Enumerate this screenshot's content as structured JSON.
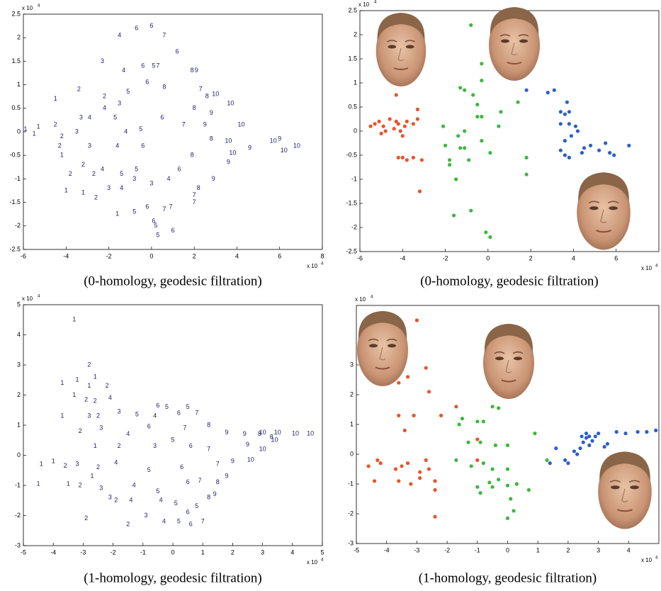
{
  "chart_data": [
    {
      "type": "scatter",
      "caption": "(0-homology, geodesic filtration)",
      "xlim": [
        -6,
        8
      ],
      "ylim": [
        -2.5,
        2.5
      ],
      "xticks": [
        -6,
        -4,
        -2,
        0,
        2,
        4,
        6,
        8
      ],
      "yticks": [
        -2.5,
        -2,
        -1.5,
        -1,
        -0.5,
        0,
        0.5,
        1,
        1.5,
        2,
        2.5
      ],
      "x_scale_label": "x 10",
      "x_scale_exponent": "4",
      "y_scale_label": "x 10",
      "y_scale_exponent": "4",
      "series": [
        {
          "color": "#22226a",
          "point_labels": [
            "6",
            "4",
            "6",
            "7",
            "6",
            "3",
            "4",
            "6",
            "5",
            "7",
            "8",
            "9",
            "2",
            "5",
            "6",
            "8",
            "7",
            "8",
            "10",
            "2",
            "3",
            "1",
            "4",
            "10",
            "8",
            "9",
            "10",
            "1",
            "1",
            "2",
            "3",
            "4",
            "5",
            "6",
            "7",
            "9",
            "1",
            "2",
            "3",
            "4",
            "5",
            "8",
            "10",
            "10",
            "10",
            "10",
            "9",
            "9",
            "2",
            "3",
            "4",
            "6",
            "8",
            "9",
            "10",
            "1",
            "2",
            "4",
            "5",
            "3",
            "6",
            "9",
            "2",
            "2",
            "3",
            "4",
            "5",
            "4",
            "8",
            "3",
            "1",
            "2",
            "1",
            "7",
            "7",
            "1",
            "5",
            "6",
            "7",
            "7",
            "6",
            "5",
            "6",
            "5"
          ],
          "x": [
            0,
            -1.5,
            -0.7,
            0.6,
            1.2,
            -2.3,
            -1.3,
            -0.4,
            0.1,
            0.3,
            1.9,
            2.1,
            -3.4,
            -1.1,
            -0.2,
            0.6,
            2.3,
            2.6,
            3,
            -2.2,
            -1.5,
            -4.5,
            -2.2,
            3.7,
            2,
            2.8,
            4.2,
            -5.9,
            -5.3,
            -4.5,
            -3.3,
            -2.9,
            -1.7,
            0.5,
            1.5,
            2.5,
            -5.5,
            -4.2,
            -3.5,
            -1.2,
            -0.5,
            2.8,
            3.6,
            5.7,
            6.8,
            6.2,
            6,
            4.6,
            -4.3,
            -2.9,
            -1.6,
            -0.4,
            1.9,
            3.6,
            3.8,
            -4.2,
            -3.2,
            -2.3,
            -0.7,
            -0.8,
            1.3,
            2.9,
            -3.8,
            -2.7,
            -2,
            -1.4,
            -1.4,
            0.8,
            2.2,
            0,
            -3.2,
            -2.6,
            -4,
            2,
            2,
            -1.6,
            -0.8,
            -0.2,
            0.6,
            0.9,
            0.1,
            0.2,
            1,
            0.3
          ],
          "values": [
            2.25,
            2.05,
            2.2,
            2.05,
            1.7,
            1.5,
            1.3,
            1.4,
            1.4,
            1.4,
            1.3,
            1.3,
            0.9,
            0.85,
            1.05,
            0.95,
            0.9,
            0.75,
            0.8,
            0.75,
            0.6,
            0.7,
            0.5,
            0.6,
            0.5,
            0.4,
            0.15,
            0.05,
            0.1,
            0.15,
            0.3,
            0.3,
            0.3,
            0.3,
            0.15,
            0.15,
            -0.05,
            -0.1,
            0,
            0,
            0.05,
            -0.15,
            -0.2,
            -0.2,
            -0.3,
            -0.4,
            -0.15,
            -0.35,
            -0.3,
            -0.3,
            -0.3,
            -0.3,
            -0.5,
            -0.65,
            -0.45,
            -0.5,
            -0.7,
            -0.8,
            -0.8,
            -1,
            -0.8,
            -1,
            -0.9,
            -0.9,
            -1.2,
            -1.2,
            -0.9,
            -1,
            -1.2,
            -1.1,
            -1.3,
            -1.4,
            -1.25,
            -1.35,
            -1.5,
            -1.75,
            -1.7,
            -1.6,
            -1.65,
            -1.6,
            -1.9,
            -2,
            -2.1,
            -2.2
          ]
        }
      ]
    },
    {
      "type": "scatter",
      "caption": "(0-homology, geodesic filtration)",
      "xlim": [
        -6,
        8
      ],
      "ylim": [
        -2.5,
        2.5
      ],
      "xticks": [
        -6,
        -4,
        -2,
        0,
        2,
        4,
        6
      ],
      "yticks": [
        -2.5,
        -2,
        -1.5,
        -1,
        -0.5,
        0,
        0.5,
        1,
        1.5,
        2,
        2.5
      ],
      "x_scale_label": "x 10",
      "x_scale_exponent": "4",
      "y_scale_label": "x 10",
      "y_scale_exponent": "4",
      "series": [
        {
          "color": "#e8542c",
          "x": [
            -5.5,
            -5.3,
            -5.1,
            -4.9,
            -4.6,
            -4.4,
            -4.2,
            -4.1,
            -4,
            -3.9,
            -3.8,
            -3.5,
            -3.3,
            -4.8,
            -5,
            -4.3,
            -3.3,
            -4.2,
            -4,
            -3.8,
            -3.5,
            -3.1,
            -3.2,
            -4.3
          ],
          "values": [
            0.1,
            0.15,
            0.2,
            0.1,
            0.25,
            0.05,
            0.15,
            0,
            -0.1,
            0.1,
            0.2,
            0.15,
            0.25,
            0,
            -0.05,
            0.75,
            0.45,
            -0.55,
            -0.55,
            -0.6,
            -0.55,
            -0.6,
            -1.25,
            0.2
          ]
        },
        {
          "color": "#3db83d",
          "x": [
            -0.8,
            -0.3,
            -1.3,
            -1.1,
            -0.3,
            -0.7,
            -0.5,
            -0.3,
            -0.5,
            0.6,
            1.4,
            -2.1,
            -1.4,
            -1.1,
            -0.3,
            0.1,
            -1.3,
            -0.9,
            -2,
            -1.8,
            -1.8,
            -1.5,
            1.8,
            1.8,
            -1.6,
            -0.8,
            -0.1,
            0.1,
            -1.1,
            0.5
          ],
          "values": [
            2.2,
            1.4,
            0.9,
            0.85,
            1.05,
            0.75,
            0.55,
            0.3,
            0.3,
            0.4,
            0.6,
            0.1,
            -0.1,
            -0.35,
            -0.2,
            -0.45,
            -0.35,
            -0.6,
            -0.3,
            -0.6,
            -0.7,
            -1,
            -0.55,
            -0.9,
            -1.75,
            -1.65,
            -2.1,
            -2.2,
            0,
            0.1
          ]
        },
        {
          "color": "#2e5fc9",
          "x": [
            1.8,
            2.8,
            3.1,
            3.7,
            3.4,
            3.6,
            3.8,
            3.4,
            3.8,
            4.1,
            4.2,
            3.9,
            3.6,
            4.5,
            4.8,
            5.2,
            5.5,
            5.7,
            5.9,
            6.6,
            3.4,
            3.6,
            3.8,
            4.4
          ],
          "values": [
            0.85,
            0.8,
            0.85,
            0.6,
            0.4,
            0.35,
            0.4,
            0.15,
            0.15,
            0.1,
            0,
            -0.1,
            -0.2,
            -0.35,
            -0.3,
            -0.4,
            -0.25,
            -0.45,
            -0.5,
            -0.3,
            -0.4,
            -0.5,
            -0.55,
            -0.45
          ]
        }
      ]
    },
    {
      "type": "scatter",
      "caption": "(1-homology, geodesic filtration)",
      "xlim": [
        -5,
        5
      ],
      "ylim": [
        -3,
        5
      ],
      "xticks": [
        -5,
        -4,
        -3,
        -2,
        -1,
        0,
        1,
        2,
        3,
        4,
        5
      ],
      "yticks": [
        -3,
        -2,
        -1,
        0,
        1,
        2,
        3,
        4,
        5
      ],
      "x_scale_label": "x 10",
      "x_scale_exponent": "4",
      "y_scale_label": "x 10",
      "y_scale_exponent": "4",
      "series": [
        {
          "color": "#22226a",
          "point_labels": [
            "1",
            "2",
            "1",
            "1",
            "1",
            "1",
            "2",
            "1",
            "2",
            "2",
            "4",
            "1",
            "3",
            "2",
            "3",
            "5",
            "4",
            "6",
            "5",
            "5",
            "6",
            "7",
            "2",
            "3",
            "4",
            "6",
            "7",
            "8",
            "9",
            "9",
            "10",
            "10",
            "10",
            "10",
            "8",
            "8",
            "1",
            "2",
            "3",
            "5",
            "6",
            "7",
            "9",
            "10",
            "10",
            "1",
            "1",
            "2",
            "3",
            "2",
            "4",
            "5",
            "6",
            "7",
            "9",
            "10",
            "1",
            "1",
            "2",
            "1",
            "3",
            "4",
            "5",
            "6",
            "7",
            "8",
            "9",
            "3",
            "2",
            "4",
            "4",
            "5",
            "8",
            "9",
            "2",
            "2",
            "3",
            "4",
            "5",
            "6",
            "5",
            "6",
            "7"
          ],
          "x": [
            -3.3,
            -2.8,
            -2.6,
            -2.8,
            -3.7,
            -3.2,
            -2.2,
            -3.3,
            -2.9,
            -2.6,
            -2.1,
            -3.7,
            -2.8,
            -2.5,
            -1.8,
            -1.2,
            -0.6,
            -0.5,
            -0.2,
            0.5,
            0.2,
            0.8,
            -3.1,
            -2.4,
            -1.5,
            -0.8,
            0.4,
            1.2,
            1.8,
            2.4,
            3,
            3.5,
            4.1,
            4.6,
            2.9,
            3.3,
            -2.6,
            -1.8,
            -0.6,
            0,
            0.6,
            1.2,
            2.5,
            3,
            3.4,
            -4.4,
            -4,
            -3.6,
            -3.2,
            -2.5,
            -1.9,
            -0.8,
            0.3,
            1.5,
            2,
            2.6,
            -4.5,
            -3.5,
            -3.1,
            -2.7,
            -2.4,
            -1.3,
            -0.5,
            0.5,
            0.9,
            1.5,
            1.8,
            -2.1,
            -1.9,
            -1.4,
            -0.4,
            0.1,
            1.2,
            1.4,
            -2.9,
            -1.5,
            -0.9,
            -0.3,
            0.2,
            0.5,
            0.8,
            0.6,
            1
          ],
          "values": [
            4.5,
            3,
            2.6,
            2.3,
            2.4,
            2.5,
            2.3,
            2,
            1.85,
            1.8,
            1.9,
            1.3,
            1.3,
            1.3,
            1.45,
            1.35,
            1.3,
            1.65,
            1.6,
            1.6,
            1.4,
            1.4,
            0.8,
            0.9,
            0.7,
            0.95,
            0.9,
            1,
            0.75,
            0.7,
            0.75,
            0.75,
            0.72,
            0.72,
            0.7,
            0.6,
            0.3,
            0.3,
            0.3,
            0.5,
            0.3,
            0.2,
            0.35,
            0.2,
            0.5,
            -0.3,
            -0.2,
            -0.35,
            -0.3,
            -0.4,
            -0.25,
            -0.5,
            -0.4,
            -0.3,
            -0.2,
            -0.15,
            -0.95,
            -0.95,
            -1,
            -0.7,
            -1.1,
            -1,
            -1.2,
            -0.9,
            -0.85,
            -0.9,
            -0.7,
            -1.4,
            -1.5,
            -1.5,
            -1.5,
            -1.6,
            -1.4,
            -1.3,
            -2.1,
            -2.3,
            -2,
            -2.2,
            -2.2,
            -1.9,
            -1.7,
            -2.3,
            -2.2
          ]
        }
      ]
    },
    {
      "type": "scatter",
      "caption": "(1-homology, geodesic filtration)",
      "xlim": [
        -5,
        5
      ],
      "ylim": [
        -3,
        5
      ],
      "xticks": [
        -5,
        -4,
        -3,
        -2,
        -1,
        0,
        1,
        2,
        3,
        4
      ],
      "yticks": [
        -3,
        -2,
        -1,
        0,
        1,
        2,
        3
      ],
      "x_scale_label": "x 10",
      "x_scale_exponent": "4",
      "y_scale_label": "x 10",
      "y_scale_exponent": "4",
      "series": [
        {
          "color": "#e8542c",
          "x": [
            -4.6,
            -4.3,
            -4.2,
            -4.4,
            -3.7,
            -3.5,
            -3.3,
            -3.6,
            -3.2,
            -2.9,
            -2.9,
            -2.6,
            -2.4,
            -2.7,
            -3.4,
            -3.6,
            -3.1,
            -3.6,
            -3.3,
            -2.6,
            -3,
            -2.7,
            -2.2,
            -1.7,
            -1,
            -2.4,
            -2.4,
            -1
          ],
          "values": [
            -0.4,
            -0.2,
            -0.3,
            -0.9,
            -0.5,
            -0.4,
            -0.3,
            -0.9,
            -1,
            -0.6,
            -0.8,
            -0.5,
            -0.9,
            -0.2,
            0.8,
            1.3,
            1.3,
            2.4,
            2.6,
            2.1,
            4.5,
            2.9,
            1.3,
            1.6,
            0.5,
            -1.2,
            -2.1,
            -0.2
          ]
        },
        {
          "color": "#3db83d",
          "x": [
            -1.5,
            -1,
            -0.8,
            -0.5,
            -0.3,
            -1.6,
            0.9,
            -0.9,
            -0.4,
            0,
            -1.3,
            -1.7,
            -1.2,
            -0.8,
            -0.5,
            -0.3,
            -0.5,
            -0.9,
            -0.6,
            0,
            0.3,
            0,
            0.7,
            1.3,
            0.2,
            0,
            -1,
            0.1
          ],
          "values": [
            1.2,
            1.1,
            1.1,
            1.6,
            1.55,
            1,
            0.7,
            0.4,
            0.3,
            0.3,
            0.4,
            -0.2,
            -0.4,
            -0.3,
            -0.5,
            -0.85,
            -1.1,
            -1.3,
            -0.95,
            -0.5,
            -1,
            -1.05,
            -1.2,
            -0.2,
            -1.9,
            -2.15,
            -1.1,
            -1.5
          ]
        },
        {
          "color": "#2e5fc9",
          "x": [
            1.4,
            1.6,
            1.9,
            2,
            2.3,
            2.4,
            2.5,
            2.6,
            2.6,
            2.7,
            2.8,
            2.9,
            3,
            3.2,
            3.3,
            3.6,
            3.9,
            4.3,
            4.6,
            4.9,
            2.2,
            2.45,
            2.7
          ],
          "values": [
            -0.3,
            0.2,
            -0.2,
            -0.3,
            0,
            0.2,
            0.4,
            0.55,
            0.7,
            0.6,
            0.45,
            0.6,
            0.7,
            0.25,
            0.35,
            0.75,
            0.7,
            0.75,
            0.75,
            0.8,
            0.1,
            0.6,
            0.3
          ]
        }
      ]
    }
  ]
}
